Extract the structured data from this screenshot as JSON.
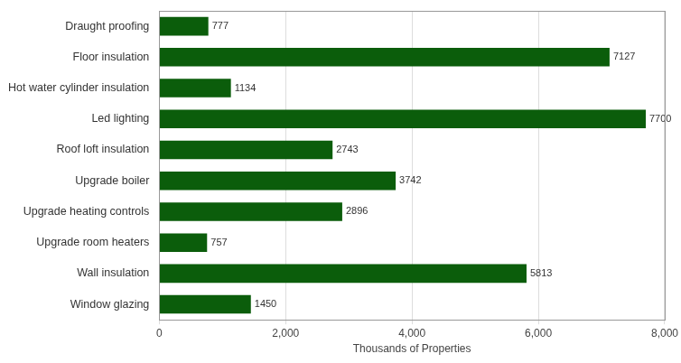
{
  "chart_data": {
    "type": "bar",
    "orientation": "horizontal",
    "categories": [
      "Draught proofing",
      "Floor insulation",
      "Hot water cylinder insulation",
      "Led lighting",
      "Roof loft insulation",
      "Upgrade boiler",
      "Upgrade heating controls",
      "Upgrade room heaters",
      "Wall insulation",
      "Window glazing"
    ],
    "values": [
      777,
      7127,
      1134,
      7700,
      2743,
      3742,
      2896,
      757,
      5813,
      1450
    ],
    "color": "#0b5d0b",
    "x_label": "Thousands of Properties",
    "xlim": [
      0,
      8000
    ],
    "xticks": [
      0,
      {
        "value": 2000,
        "label": "2,000"
      },
      {
        "value": 4000,
        "label": "4,000"
      },
      {
        "value": 6000,
        "label": "6,000"
      },
      {
        "value": 8000,
        "label": "8,000"
      }
    ],
    "grid": true,
    "data_labels": true
  }
}
